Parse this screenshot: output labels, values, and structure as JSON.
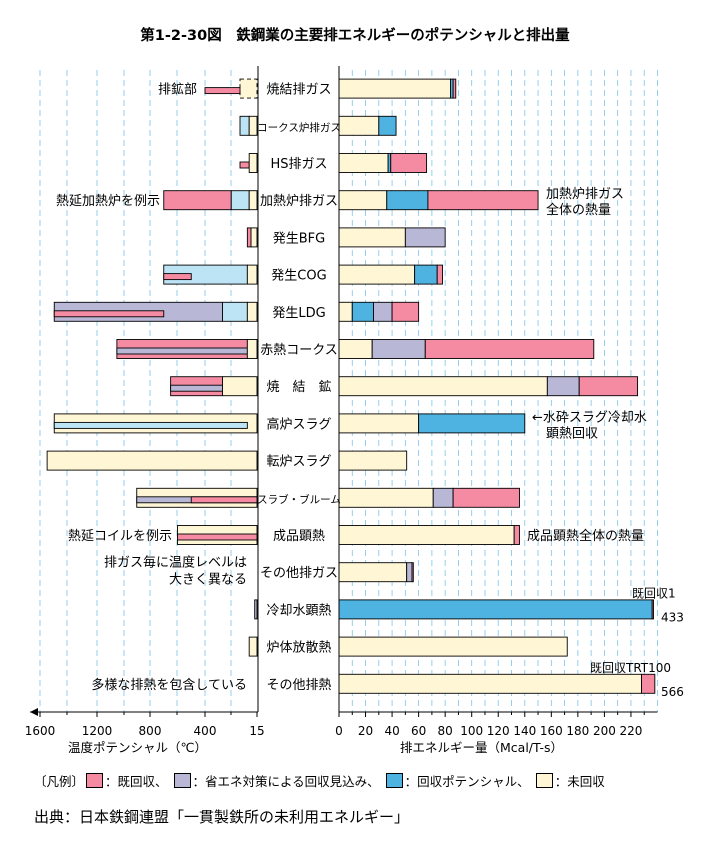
{
  "chart_data": {
    "type": "bar",
    "title": "第1-2-30図　鉄鋼業の主要排エネルギーのポテンシャルと排出量",
    "left_axis": {
      "label": "温度ポテンシャル（℃）",
      "ticks": [
        "1600",
        "1200",
        "800",
        "400",
        "15"
      ]
    },
    "right_axis": {
      "label": "排エネルギー量（Mcal/T-s）",
      "ticks": [
        0,
        20,
        40,
        60,
        80,
        100,
        120,
        140,
        160,
        180,
        200,
        220
      ],
      "xlim": [
        0,
        240
      ]
    },
    "colors": {
      "kaishu": "#f48ba3",
      "shoene": "#b8b7d6",
      "potential": "#4fb3e2",
      "potential_light": "#bde4f5",
      "mikaishu": "#fff6d6"
    },
    "legend": {
      "prefix": "〔凡例〕",
      "items": [
        {
          "key": "kaishu",
          "label": "：既回収、"
        },
        {
          "key": "shoene",
          "label": "：省エネ対策による回収見込み、"
        },
        {
          "key": "potential",
          "label": "：回収ポテンシャル、"
        },
        {
          "key": "mikaishu",
          "label": "：未回収"
        }
      ]
    },
    "categories": [
      "焼結排ガス",
      "コークス炉排ガス",
      "HS排ガス",
      "加熱炉排ガス",
      "発生BFG",
      "発生COG",
      "発生LDG",
      "赤熱コークス",
      "焼　結　鉱",
      "高炉スラグ",
      "転炉スラグ",
      "スラブ・ブルーム",
      "成品顕熱",
      "その他排ガス",
      "冷却水顕熱",
      "炉体放散熱",
      "その他排熱"
    ],
    "energy": [
      [
        {
          "c": "mikaishu",
          "v": 84
        },
        {
          "c": "potential",
          "v": 2
        },
        {
          "c": "kaishu",
          "v": 2
        }
      ],
      [
        {
          "c": "mikaishu",
          "v": 30
        },
        {
          "c": "potential",
          "v": 13
        }
      ],
      [
        {
          "c": "mikaishu",
          "v": 37
        },
        {
          "c": "potential",
          "v": 2
        },
        {
          "c": "kaishu",
          "v": 27
        }
      ],
      [
        {
          "c": "mikaishu",
          "v": 36
        },
        {
          "c": "potential",
          "v": 31
        },
        {
          "c": "kaishu",
          "v": 83
        }
      ],
      [
        {
          "c": "mikaishu",
          "v": 50
        },
        {
          "c": "shoene",
          "v": 30
        }
      ],
      [
        {
          "c": "mikaishu",
          "v": 57
        },
        {
          "c": "potential",
          "v": 17
        },
        {
          "c": "kaishu",
          "v": 4
        }
      ],
      [
        {
          "c": "mikaishu",
          "v": 10
        },
        {
          "c": "potential",
          "v": 16
        },
        {
          "c": "shoene",
          "v": 14
        },
        {
          "c": "kaishu",
          "v": 20
        }
      ],
      [
        {
          "c": "mikaishu",
          "v": 25
        },
        {
          "c": "shoene",
          "v": 40
        },
        {
          "c": "kaishu",
          "v": 127
        }
      ],
      [
        {
          "c": "mikaishu",
          "v": 157
        },
        {
          "c": "shoene",
          "v": 24
        },
        {
          "c": "kaishu",
          "v": 44
        }
      ],
      [
        {
          "c": "mikaishu",
          "v": 60
        },
        {
          "c": "potential",
          "v": 80
        }
      ],
      [
        {
          "c": "mikaishu",
          "v": 51
        }
      ],
      [
        {
          "c": "mikaishu",
          "v": 71
        },
        {
          "c": "shoene",
          "v": 15
        },
        {
          "c": "kaishu",
          "v": 50
        }
      ],
      [
        {
          "c": "mikaishu",
          "v": 132
        },
        {
          "c": "kaishu",
          "v": 4
        }
      ],
      [
        {
          "c": "mikaishu",
          "v": 51
        },
        {
          "c": "shoene",
          "v": 4
        },
        {
          "c": "kaishu",
          "v": 1
        }
      ],
      [
        {
          "c": "potential",
          "v": 236
        },
        {
          "c": "kaishu",
          "v": 1
        }
      ],
      [
        {
          "c": "mikaishu",
          "v": 172
        }
      ],
      [
        {
          "c": "mikaishu",
          "v": 228
        },
        {
          "c": "kaishu",
          "v": 10
        }
      ]
    ],
    "temperature": [
      [
        {
          "from": 200,
          "to": 15,
          "c": "mikaishu",
          "style": "dashed"
        },
        {
          "from": 400,
          "to": 200,
          "c": "kaishu",
          "style": "thin"
        }
      ],
      [
        {
          "from": 200,
          "to": 100,
          "c": "potential_light"
        },
        {
          "from": 100,
          "to": 15,
          "c": "mikaishu"
        }
      ],
      [
        {
          "from": 200,
          "to": 100,
          "c": "kaishu",
          "style": "thin"
        },
        {
          "from": 100,
          "to": 15,
          "c": "mikaishu"
        }
      ],
      [
        {
          "from": 700,
          "to": 250,
          "c": "kaishu"
        },
        {
          "from": 250,
          "to": 100,
          "c": "potential_light"
        },
        {
          "from": 100,
          "to": 15,
          "c": "mikaishu"
        }
      ],
      [
        {
          "from": 120,
          "to": 80,
          "c": "kaishu"
        },
        {
          "from": 80,
          "to": 15,
          "c": "mikaishu"
        }
      ],
      [
        {
          "from": 700,
          "to": 120,
          "c": "potential_light"
        },
        {
          "from": 700,
          "to": 500,
          "c": "kaishu",
          "style": "thin"
        },
        {
          "from": 120,
          "to": 15,
          "c": "mikaishu"
        }
      ],
      [
        {
          "from": 1500,
          "to": 300,
          "c": "shoene"
        },
        {
          "from": 300,
          "to": 120,
          "c": "potential_light"
        },
        {
          "from": 1500,
          "to": 700,
          "c": "kaishu",
          "style": "thin"
        },
        {
          "from": 120,
          "to": 15,
          "c": "mikaishu"
        }
      ],
      [
        {
          "from": 1050,
          "to": 120,
          "c": "kaishu"
        },
        {
          "from": 1050,
          "to": 120,
          "c": "shoene",
          "style": "thin"
        },
        {
          "from": 120,
          "to": 15,
          "c": "mikaishu"
        }
      ],
      [
        {
          "from": 650,
          "to": 300,
          "c": "kaishu"
        },
        {
          "from": 650,
          "to": 300,
          "c": "shoene",
          "style": "thin"
        },
        {
          "from": 300,
          "to": 15,
          "c": "mikaishu"
        }
      ],
      [
        {
          "from": 1500,
          "to": 15,
          "c": "mikaishu"
        },
        {
          "from": 1500,
          "to": 120,
          "c": "potential_light",
          "style": "thin"
        }
      ],
      [
        {
          "from": 1550,
          "to": 15,
          "c": "mikaishu"
        }
      ],
      [
        {
          "from": 900,
          "to": 15,
          "c": "mikaishu"
        },
        {
          "from": 900,
          "to": 15,
          "c": "shoene",
          "style": "thin"
        },
        {
          "from": 500,
          "to": 15,
          "c": "kaishu",
          "style": "thin"
        }
      ],
      [
        {
          "from": 600,
          "to": 15,
          "c": "mikaishu"
        },
        {
          "from": 600,
          "to": 15,
          "c": "kaishu",
          "style": "thin"
        }
      ],
      [],
      [
        {
          "from": 40,
          "to": 15,
          "c": "shoene"
        }
      ],
      [
        {
          "from": 100,
          "to": 15,
          "c": "mikaishu"
        }
      ],
      []
    ],
    "annotations": {
      "left": [
        {
          "row": 0,
          "text": "排鉱部"
        },
        {
          "row": 3,
          "text": "熱延加熱炉を例示"
        },
        {
          "row": 12,
          "text": "熱延コイルを例示"
        },
        {
          "row": 13,
          "lines": [
            "排ガス毎に温度レベルは",
            "大きく異なる"
          ]
        },
        {
          "row": 16,
          "text": "多様な排熱を包含している"
        }
      ],
      "right": [
        {
          "row": 3,
          "lines": [
            "加熱炉排ガス",
            "全体の熱量"
          ]
        },
        {
          "row": 9,
          "arrow": "←",
          "lines": [
            "水砕スラグ冷却水",
            "顕熱回収"
          ]
        },
        {
          "row": 12,
          "text": "成品顕熱全体の熱量"
        },
        {
          "row": 14,
          "top": "既回収1",
          "value": "433"
        },
        {
          "row": 16,
          "top": "既回収TRT100",
          "value": "566"
        }
      ]
    }
  },
  "source": "出典：日本鉄鋼連盟「一貫製鉄所の未利用エネルギー」"
}
